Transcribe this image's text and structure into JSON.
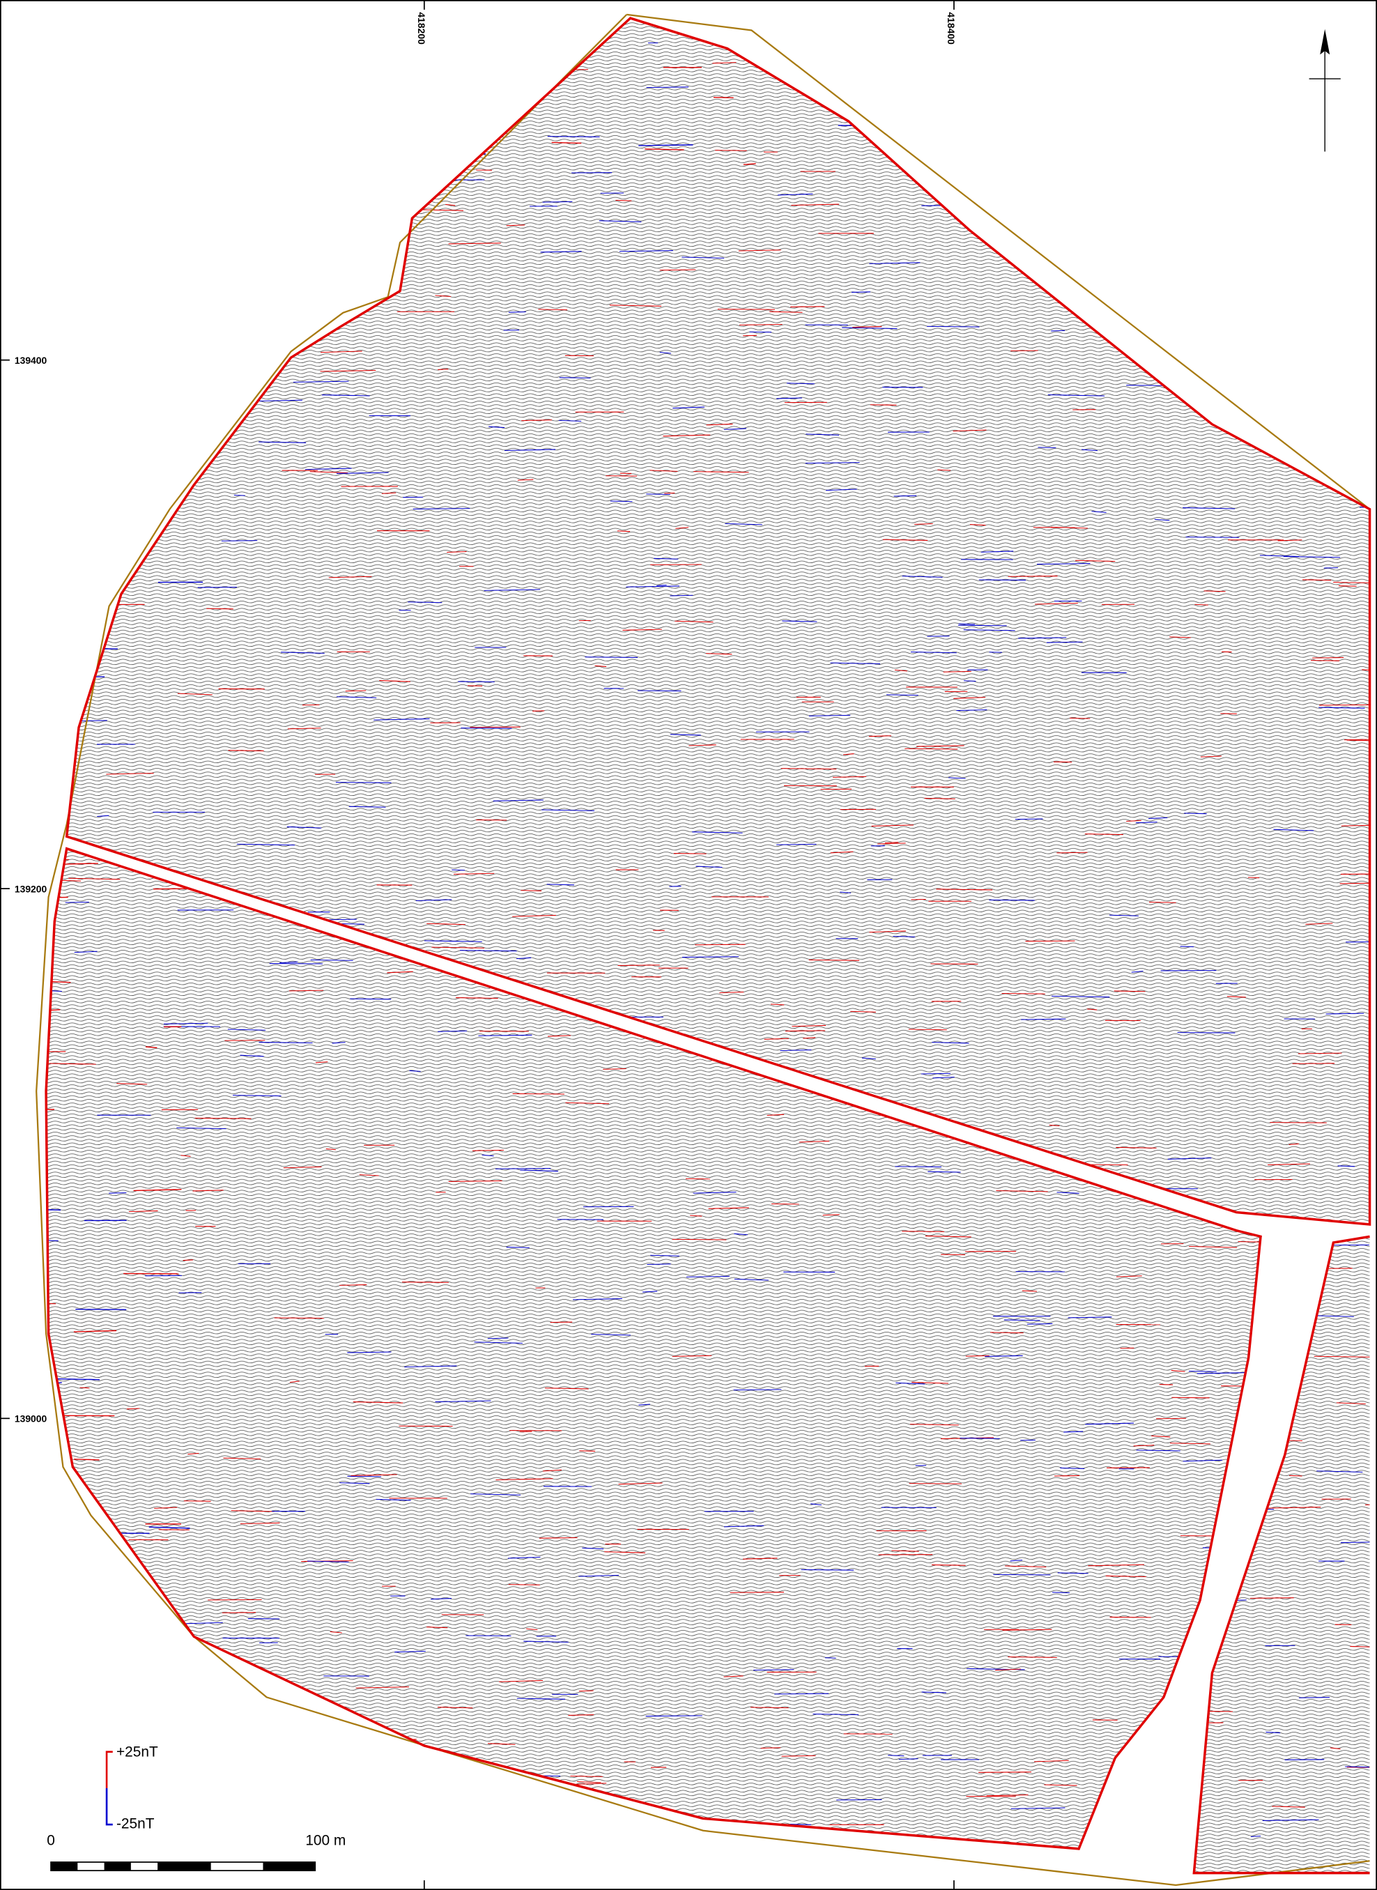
{
  "map": {
    "grid_labels": {
      "eastings": [
        "418200",
        "418400"
      ],
      "northings": [
        "139400",
        "139200",
        "139000"
      ]
    },
    "legend": {
      "positive": "+25nT",
      "negative": "-25nT"
    },
    "scale_bar": {
      "start": "0",
      "end": "100 m"
    }
  }
}
